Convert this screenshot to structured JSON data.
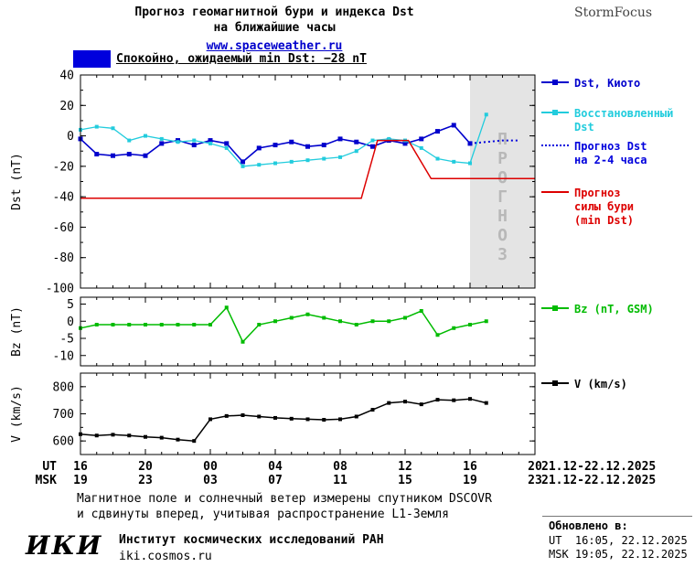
{
  "header": {
    "title_line1": "Прогноз геомагнитной бури и индекса Dst",
    "title_line2": "на ближайшие часы",
    "title_link": "www.spaceweather.ru",
    "brand": "StormFocus"
  },
  "status": {
    "label": "Спокойно, ожидаемый min Dst: −28 nT",
    "swatch_color": "#0000dd"
  },
  "legend": {
    "dst_kyoto": "Dst, Киото",
    "dst_reconstructed_l1": "Восстановленный",
    "dst_reconstructed_l2": "Dst",
    "forecast_l1": "Прогноз Dst",
    "forecast_l2": "на 2-4 часа",
    "storm_l1": "Прогноз",
    "storm_l2": "силы бури",
    "storm_l3": "(min Dst)",
    "bz": "Bz (nT, GSM)",
    "v": "V (km/s)"
  },
  "chart_data": {
    "type": "line",
    "x_axis": {
      "range": [
        16,
        44
      ],
      "tick_hours": [
        16,
        20,
        24,
        28,
        32,
        36,
        40,
        44
      ],
      "ticks_ut": [
        "16",
        "20",
        "00",
        "04",
        "08",
        "12",
        "16",
        "20"
      ],
      "ticks_msk": [
        "19",
        "23",
        "03",
        "07",
        "11",
        "15",
        "19",
        "23"
      ],
      "ut_label": "UT",
      "msk_label": "MSK",
      "date_ut": "21.12-22.12.2025",
      "date_msk": "21.12-22.12.2025"
    },
    "panels": [
      {
        "name": "dst",
        "ylabel": "Dst (nT)",
        "ylim": [
          -100,
          40
        ],
        "yticks": [
          40,
          20,
          0,
          -20,
          -40,
          -60,
          -80,
          -100
        ],
        "yminor": 10,
        "forecast_band": {
          "from": 40,
          "to": 44,
          "label": "ПРОГНОЗ"
        },
        "series": [
          {
            "name": "Dst, Киото",
            "color": "#0000cc",
            "marker": true,
            "marker_size": 5,
            "width": 1.6,
            "x": [
              16,
              17,
              18,
              19,
              20,
              21,
              22,
              23,
              24,
              25,
              26,
              27,
              28,
              29,
              30,
              31,
              32,
              33,
              34,
              35,
              36,
              37,
              38,
              39,
              40
            ],
            "y": [
              -2,
              -12,
              -13,
              -12,
              -13,
              -5,
              -3,
              -6,
              -3,
              -5,
              -17,
              -8,
              -6,
              -4,
              -7,
              -6,
              -2,
              -4,
              -7,
              -3,
              -5,
              -2,
              3,
              7,
              -5
            ]
          },
          {
            "name": "Восстановленный Dst",
            "color": "#22ccdd",
            "marker": true,
            "marker_size": 4,
            "width": 1.3,
            "x": [
              16,
              17,
              18,
              19,
              20,
              21,
              22,
              23,
              24,
              25,
              26,
              27,
              28,
              29,
              30,
              31,
              32,
              33,
              34,
              35,
              36,
              37,
              38,
              39,
              40,
              41
            ],
            "y": [
              4,
              6,
              5,
              -3,
              0,
              -2,
              -4,
              -3,
              -5,
              -8,
              -20,
              -19,
              -18,
              -17,
              -16,
              -15,
              -14,
              -10,
              -3,
              -2,
              -3,
              -8,
              -15,
              -17,
              -18,
              14
            ]
          },
          {
            "name": "Прогноз Dst на 2-4 часа",
            "color": "#0000dd",
            "style": "dotted",
            "width": 2,
            "x": [
              40,
              41,
              42,
              43
            ],
            "y": [
              -5,
              -4,
              -3,
              -3
            ]
          },
          {
            "name": "Прогноз силы бури (min Dst)",
            "color": "#dd0000",
            "width": 1.5,
            "x": [
              16,
              33.3,
              34.3,
              36.2,
              37.6,
              44
            ],
            "y": [
              -41,
              -41,
              -3,
              -3,
              -28,
              -28
            ]
          }
        ]
      },
      {
        "name": "bz",
        "ylabel": "Bz (nT)",
        "ylim": [
          -13,
          7
        ],
        "yticks": [
          5,
          0,
          -5,
          -10
        ],
        "series": [
          {
            "name": "Bz (nT, GSM)",
            "color": "#00bb00",
            "marker": true,
            "marker_size": 4,
            "width": 1.5,
            "x": [
              16,
              17,
              18,
              19,
              20,
              21,
              22,
              23,
              24,
              25,
              26,
              27,
              28,
              29,
              30,
              31,
              32,
              33,
              34,
              35,
              36,
              37,
              38,
              39,
              40,
              41
            ],
            "y": [
              -2,
              -1,
              -1,
              -1,
              -1,
              -1,
              -1,
              -1,
              -1,
              4,
              -6,
              -1,
              0,
              1,
              2,
              1,
              0,
              -1,
              0,
              0,
              1,
              3,
              -4,
              -2,
              -1,
              0
            ]
          }
        ]
      },
      {
        "name": "v",
        "ylabel": "V (km/s)",
        "ylim": [
          550,
          850
        ],
        "yticks": [
          600,
          700,
          800
        ],
        "yminor": 50,
        "series": [
          {
            "name": "V (km/s)",
            "color": "#000000",
            "marker": true,
            "marker_size": 4,
            "width": 1.5,
            "x": [
              16,
              17,
              18,
              19,
              20,
              21,
              22,
              23,
              24,
              25,
              26,
              27,
              28,
              29,
              30,
              31,
              32,
              33,
              34,
              35,
              36,
              37,
              38,
              39,
              40,
              41
            ],
            "y": [
              625,
              620,
              623,
              620,
              615,
              612,
              605,
              600,
              680,
              692,
              695,
              690,
              685,
              682,
              680,
              678,
              680,
              690,
              715,
              740,
              745,
              735,
              752,
              750,
              755,
              740
            ]
          }
        ]
      }
    ]
  },
  "footer": {
    "note_line1": "Магнитное поле и солнечный ветер измерены спутником DSCOVR",
    "note_line2": "и сдвинуты вперед, учитывая распространение L1-Земля",
    "updated_label": "Обновлено в:",
    "updated_ut": "UT  16:05, 22.12.2025",
    "updated_msk": "MSK 19:05, 22.12.2025",
    "logo": "ИКИ",
    "institute": "Институт космических исследований РАН",
    "site": "iki.cosmos.ru"
  }
}
